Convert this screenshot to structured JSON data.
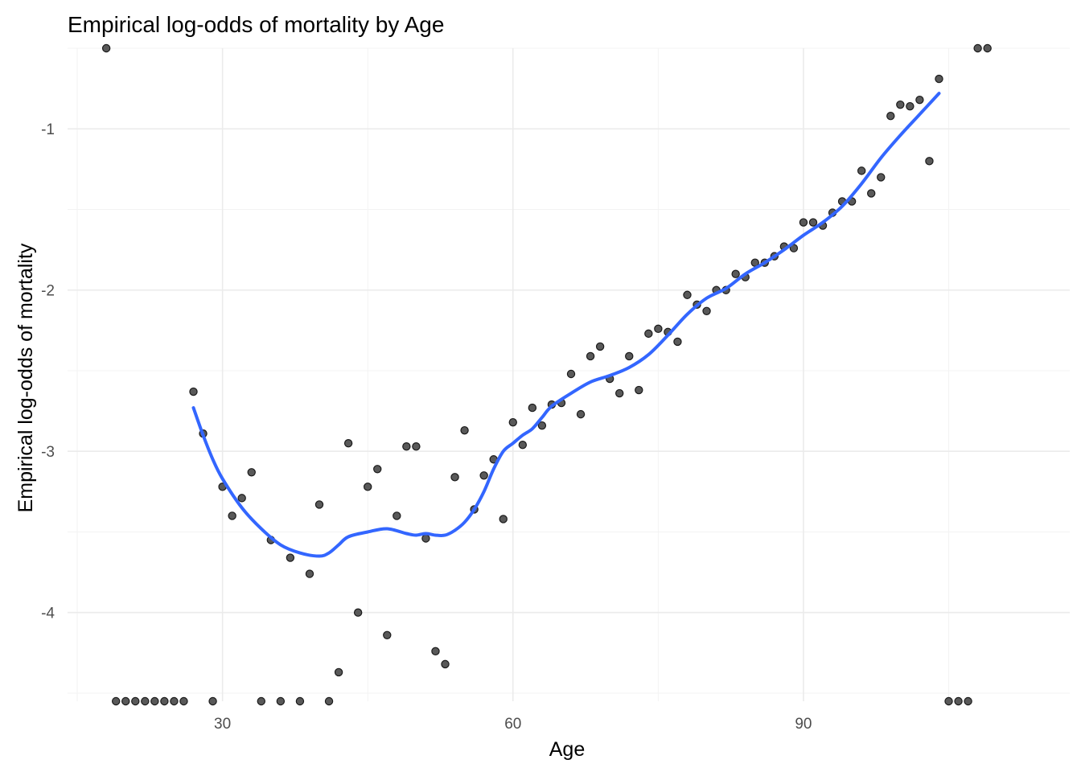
{
  "chart_data": {
    "type": "scatter",
    "title": "Empirical log-odds of mortality by Age",
    "xlabel": "Age",
    "ylabel": "Empirical log-odds of mortality",
    "xlim": [
      14,
      117.5
    ],
    "ylim": [
      -4.55,
      -0.5
    ],
    "x_ticks": [
      30,
      60,
      90
    ],
    "y_ticks": [
      -4,
      -3,
      -2,
      -1
    ],
    "grid": true,
    "colors": {
      "point_fill": "#595959",
      "point_stroke": "#1a1a1a",
      "smooth_line": "#3366ff"
    },
    "points": [
      {
        "x": 18,
        "y": -0.5
      },
      {
        "x": 19,
        "y": -4.55
      },
      {
        "x": 20,
        "y": -4.55
      },
      {
        "x": 21,
        "y": -4.55
      },
      {
        "x": 22,
        "y": -4.55
      },
      {
        "x": 23,
        "y": -4.55
      },
      {
        "x": 24,
        "y": -4.55
      },
      {
        "x": 25,
        "y": -4.55
      },
      {
        "x": 26,
        "y": -4.55
      },
      {
        "x": 27,
        "y": -2.63
      },
      {
        "x": 28,
        "y": -2.89
      },
      {
        "x": 29,
        "y": -4.55
      },
      {
        "x": 30,
        "y": -3.22
      },
      {
        "x": 31,
        "y": -3.4
      },
      {
        "x": 32,
        "y": -3.29
      },
      {
        "x": 33,
        "y": -3.13
      },
      {
        "x": 34,
        "y": -4.55
      },
      {
        "x": 35,
        "y": -3.55
      },
      {
        "x": 36,
        "y": -4.55
      },
      {
        "x": 37,
        "y": -3.66
      },
      {
        "x": 38,
        "y": -4.55
      },
      {
        "x": 39,
        "y": -3.76
      },
      {
        "x": 40,
        "y": -3.33
      },
      {
        "x": 41,
        "y": -4.55
      },
      {
        "x": 42,
        "y": -4.37
      },
      {
        "x": 43,
        "y": -2.95
      },
      {
        "x": 44,
        "y": -4.0
      },
      {
        "x": 45,
        "y": -3.22
      },
      {
        "x": 46,
        "y": -3.11
      },
      {
        "x": 47,
        "y": -4.14
      },
      {
        "x": 48,
        "y": -3.4
      },
      {
        "x": 49,
        "y": -2.97
      },
      {
        "x": 50,
        "y": -2.97
      },
      {
        "x": 51,
        "y": -3.54
      },
      {
        "x": 52,
        "y": -4.24
      },
      {
        "x": 53,
        "y": -4.32
      },
      {
        "x": 54,
        "y": -3.16
      },
      {
        "x": 55,
        "y": -2.87
      },
      {
        "x": 56,
        "y": -3.36
      },
      {
        "x": 57,
        "y": -3.15
      },
      {
        "x": 58,
        "y": -3.05
      },
      {
        "x": 59,
        "y": -3.42
      },
      {
        "x": 60,
        "y": -2.82
      },
      {
        "x": 61,
        "y": -2.96
      },
      {
        "x": 62,
        "y": -2.73
      },
      {
        "x": 63,
        "y": -2.84
      },
      {
        "x": 64,
        "y": -2.71
      },
      {
        "x": 65,
        "y": -2.7
      },
      {
        "x": 66,
        "y": -2.52
      },
      {
        "x": 67,
        "y": -2.77
      },
      {
        "x": 68,
        "y": -2.41
      },
      {
        "x": 69,
        "y": -2.35
      },
      {
        "x": 70,
        "y": -2.55
      },
      {
        "x": 71,
        "y": -2.64
      },
      {
        "x": 72,
        "y": -2.41
      },
      {
        "x": 73,
        "y": -2.62
      },
      {
        "x": 74,
        "y": -2.27
      },
      {
        "x": 75,
        "y": -2.24
      },
      {
        "x": 76,
        "y": -2.26
      },
      {
        "x": 77,
        "y": -2.32
      },
      {
        "x": 78,
        "y": -2.03
      },
      {
        "x": 79,
        "y": -2.09
      },
      {
        "x": 80,
        "y": -2.13
      },
      {
        "x": 81,
        "y": -2.0
      },
      {
        "x": 82,
        "y": -2.0
      },
      {
        "x": 83,
        "y": -1.9
      },
      {
        "x": 84,
        "y": -1.92
      },
      {
        "x": 85,
        "y": -1.83
      },
      {
        "x": 86,
        "y": -1.83
      },
      {
        "x": 87,
        "y": -1.79
      },
      {
        "x": 88,
        "y": -1.73
      },
      {
        "x": 89,
        "y": -1.74
      },
      {
        "x": 90,
        "y": -1.58
      },
      {
        "x": 91,
        "y": -1.58
      },
      {
        "x": 92,
        "y": -1.6
      },
      {
        "x": 93,
        "y": -1.52
      },
      {
        "x": 94,
        "y": -1.45
      },
      {
        "x": 95,
        "y": -1.45
      },
      {
        "x": 96,
        "y": -1.26
      },
      {
        "x": 97,
        "y": -1.4
      },
      {
        "x": 98,
        "y": -1.3
      },
      {
        "x": 99,
        "y": -0.92
      },
      {
        "x": 100,
        "y": -0.85
      },
      {
        "x": 101,
        "y": -0.86
      },
      {
        "x": 102,
        "y": -0.82
      },
      {
        "x": 103,
        "y": -1.2
      },
      {
        "x": 104,
        "y": -0.69
      },
      {
        "x": 105,
        "y": -4.55
      },
      {
        "x": 106,
        "y": -4.55
      },
      {
        "x": 107,
        "y": -4.55
      },
      {
        "x": 108,
        "y": -0.5
      },
      {
        "x": 109,
        "y": -0.5
      }
    ],
    "smooth": [
      {
        "x": 27,
        "y": -2.73
      },
      {
        "x": 28,
        "y": -2.9
      },
      {
        "x": 29,
        "y": -3.05
      },
      {
        "x": 30,
        "y": -3.17
      },
      {
        "x": 32,
        "y": -3.35
      },
      {
        "x": 34,
        "y": -3.48
      },
      {
        "x": 36,
        "y": -3.58
      },
      {
        "x": 38,
        "y": -3.63
      },
      {
        "x": 40,
        "y": -3.65
      },
      {
        "x": 41,
        "y": -3.63
      },
      {
        "x": 42,
        "y": -3.58
      },
      {
        "x": 43,
        "y": -3.53
      },
      {
        "x": 45,
        "y": -3.5
      },
      {
        "x": 47,
        "y": -3.48
      },
      {
        "x": 49,
        "y": -3.51
      },
      {
        "x": 50,
        "y": -3.52
      },
      {
        "x": 51,
        "y": -3.51
      },
      {
        "x": 52,
        "y": -3.52
      },
      {
        "x": 53,
        "y": -3.52
      },
      {
        "x": 54,
        "y": -3.49
      },
      {
        "x": 55,
        "y": -3.44
      },
      {
        "x": 56,
        "y": -3.36
      },
      {
        "x": 57,
        "y": -3.25
      },
      {
        "x": 58,
        "y": -3.11
      },
      {
        "x": 59,
        "y": -3.0
      },
      {
        "x": 60,
        "y": -2.95
      },
      {
        "x": 61,
        "y": -2.9
      },
      {
        "x": 62,
        "y": -2.86
      },
      {
        "x": 63,
        "y": -2.79
      },
      {
        "x": 64,
        "y": -2.72
      },
      {
        "x": 66,
        "y": -2.64
      },
      {
        "x": 68,
        "y": -2.57
      },
      {
        "x": 70,
        "y": -2.53
      },
      {
        "x": 72,
        "y": -2.48
      },
      {
        "x": 74,
        "y": -2.4
      },
      {
        "x": 76,
        "y": -2.28
      },
      {
        "x": 78,
        "y": -2.15
      },
      {
        "x": 80,
        "y": -2.05
      },
      {
        "x": 82,
        "y": -1.99
      },
      {
        "x": 84,
        "y": -1.9
      },
      {
        "x": 86,
        "y": -1.83
      },
      {
        "x": 88,
        "y": -1.75
      },
      {
        "x": 90,
        "y": -1.66
      },
      {
        "x": 92,
        "y": -1.58
      },
      {
        "x": 94,
        "y": -1.48
      },
      {
        "x": 96,
        "y": -1.34
      },
      {
        "x": 98,
        "y": -1.18
      },
      {
        "x": 100,
        "y": -1.04
      },
      {
        "x": 102,
        "y": -0.91
      },
      {
        "x": 104,
        "y": -0.78
      }
    ]
  }
}
